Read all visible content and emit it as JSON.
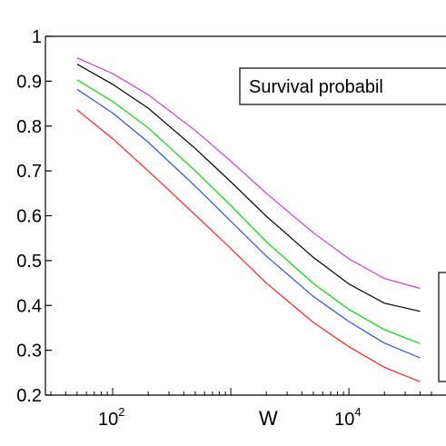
{
  "chart_data": {
    "type": "line",
    "xscale": "log",
    "xlim": [
      30,
      50000
    ],
    "ylim": [
      0.2,
      1.0
    ],
    "xlabel": "W",
    "ylabel": "",
    "title": "",
    "grid": false,
    "yticks": [
      "0.2",
      "0.3",
      "0.4",
      "0.5",
      "0.6",
      "0.7",
      "0.8",
      "0.9",
      "1"
    ],
    "xticks": [
      {
        "value": 100,
        "base": "10",
        "exp": "2"
      },
      {
        "value": 10000,
        "base": "10",
        "exp": "4"
      }
    ],
    "annotation": "Survival probabil",
    "series": [
      {
        "color": "#d633d6",
        "x": [
          50,
          100,
          200,
          500,
          1000,
          2000,
          5000,
          10000,
          20000,
          40000
        ],
        "y": [
          0.952,
          0.917,
          0.87,
          0.79,
          0.722,
          0.65,
          0.562,
          0.504,
          0.46,
          0.438
        ]
      },
      {
        "color": "#000000",
        "x": [
          50,
          100,
          200,
          500,
          1000,
          2000,
          5000,
          10000,
          20000,
          40000
        ],
        "y": [
          0.938,
          0.893,
          0.84,
          0.75,
          0.676,
          0.599,
          0.507,
          0.448,
          0.405,
          0.387
        ]
      },
      {
        "color": "#00dd00",
        "x": [
          50,
          100,
          200,
          500,
          1000,
          2000,
          5000,
          10000,
          20000,
          40000
        ],
        "y": [
          0.903,
          0.855,
          0.796,
          0.7,
          0.623,
          0.542,
          0.449,
          0.391,
          0.346,
          0.315
        ]
      },
      {
        "color": "#2850f0",
        "x": [
          50,
          100,
          200,
          500,
          1000,
          2000,
          5000,
          10000,
          20000,
          40000
        ],
        "y": [
          0.882,
          0.829,
          0.764,
          0.666,
          0.588,
          0.51,
          0.42,
          0.364,
          0.316,
          0.283
        ]
      },
      {
        "color": "#ff2020",
        "x": [
          50,
          100,
          200,
          500,
          1000,
          2000,
          5000,
          10000,
          20000,
          40000
        ],
        "y": [
          0.836,
          0.772,
          0.7,
          0.602,
          0.527,
          0.45,
          0.362,
          0.308,
          0.262,
          0.23
        ]
      }
    ]
  }
}
